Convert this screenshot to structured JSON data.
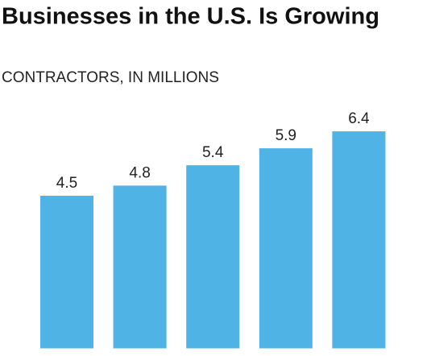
{
  "chart_data": {
    "type": "bar",
    "title": "Businesses in the U.S. Is Growing",
    "subtitle": "CONTRACTORS, IN MILLIONS",
    "categories": [
      null,
      null,
      null,
      null,
      null
    ],
    "values": [
      4.5,
      4.8,
      5.4,
      5.9,
      6.4
    ],
    "color": "#4fb3e6"
  }
}
